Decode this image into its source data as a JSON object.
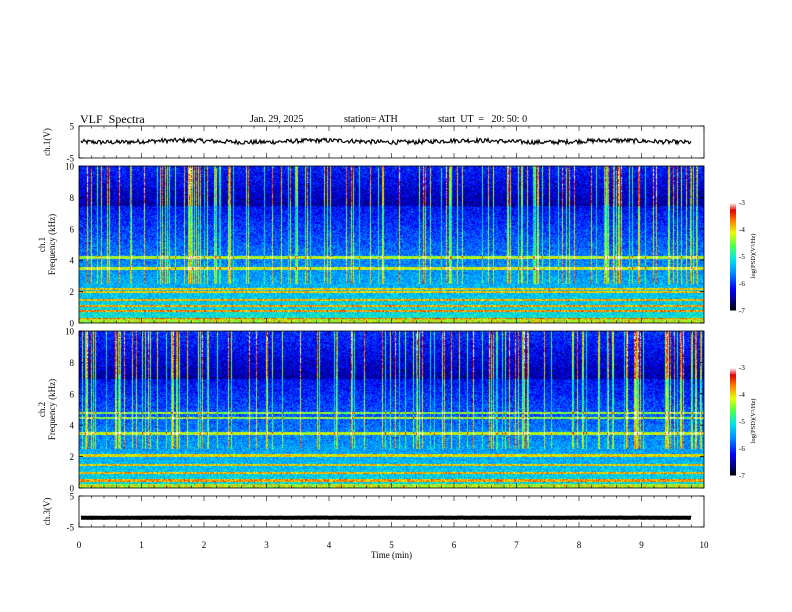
{
  "header": {
    "title": "VLF  Spectra",
    "date": "Jan. 29, 2025",
    "station": "station= ATH",
    "start": "start  UT  =   20: 50: 0"
  },
  "chart_data": [
    {
      "type": "line",
      "ylabel": "ch.1(V)",
      "ylim": [
        -5,
        5
      ],
      "yticks": [
        "5",
        "-5"
      ],
      "xlim": [
        0,
        9.8
      ],
      "series": [
        {
          "mean": 0.2,
          "noise": 0.7
        }
      ]
    },
    {
      "type": "heatmap",
      "ylabel": "ch.1\nFrequency  (kHz)",
      "ylim": [
        0,
        10
      ],
      "yticks": [
        "0",
        "2",
        "4",
        "6",
        "8",
        "10"
      ],
      "xlim": [
        0,
        9.8
      ],
      "colorbar": {
        "label": "log(PSD)(V²/Hz)",
        "ticks": [
          "-3",
          "-4",
          "-5",
          "-6",
          "-7"
        ],
        "range": [
          -7,
          -3
        ]
      },
      "bands_khz": [
        0.3,
        0.8,
        1.1,
        1.5,
        2.0,
        2.2,
        3.5,
        4.2
      ],
      "sferic_upper_khz": 7.5
    },
    {
      "type": "heatmap",
      "ylabel": "ch.2\nFrequency  (kHz)",
      "ylim": [
        0,
        10
      ],
      "yticks": [
        "0",
        "2",
        "4",
        "6",
        "8",
        "10"
      ],
      "xlim": [
        0,
        9.8
      ],
      "colorbar": {
        "label": "log(PSD)(V²/Hz)",
        "ticks": [
          "-3",
          "-4",
          "-5",
          "-6",
          "-7"
        ],
        "range": [
          -7,
          -3
        ]
      },
      "bands_khz": [
        0.5,
        1.0,
        1.5,
        2.1,
        3.5,
        4.5,
        4.8
      ],
      "sferic_upper_khz": 7.0
    },
    {
      "type": "line",
      "ylabel": "ch.3(V)",
      "ylim": [
        -5,
        5
      ],
      "yticks": [
        "5",
        "-5"
      ],
      "xlim": [
        0,
        9.8
      ],
      "series": [
        {
          "mean": -2.0,
          "noise": 0.05
        }
      ]
    }
  ],
  "xaxis": {
    "label": "Time  (min)",
    "ticks": [
      "0",
      "1",
      "2",
      "3",
      "4",
      "5",
      "6",
      "7",
      "8",
      "9",
      "10"
    ],
    "range": [
      0,
      10
    ]
  }
}
